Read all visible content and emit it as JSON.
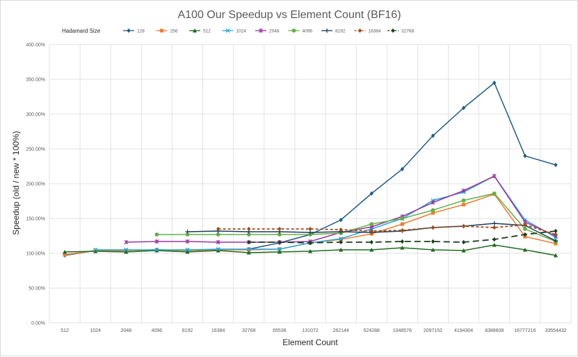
{
  "chart_data": {
    "type": "line",
    "title": "A100 Our Speedup vs Element Count (BF16)",
    "xlabel": "Element Count",
    "ylabel": "Speedup (old / new * 100%)",
    "legend_title": "Hadamard Size",
    "legend_position": "top",
    "grid": true,
    "ylim": [
      0,
      400
    ],
    "yticks": [
      "0.00%",
      "50.00%",
      "100.00%",
      "150.00%",
      "200.00%",
      "250.00%",
      "300.00%",
      "350.00%",
      "400.00%"
    ],
    "categories": [
      "512",
      "1024",
      "2048",
      "4096",
      "8192",
      "16384",
      "32768",
      "65536",
      "131072",
      "262144",
      "524288",
      "1048576",
      "2097152",
      "4194304",
      "8388608",
      "16777216",
      "33554432"
    ],
    "series": [
      {
        "name": "128",
        "color": "#1f5c85",
        "marker": "diamond",
        "dash": "",
        "values": [
          97,
          104,
          104,
          105,
          104,
          105,
          106,
          115,
          127,
          148,
          186,
          221,
          269,
          309,
          345,
          240,
          227
        ]
      },
      {
        "name": "256",
        "color": "#ed7d31",
        "marker": "square",
        "dash": "",
        "values": [
          98,
          104,
          104,
          105,
          104,
          105,
          105,
          106,
          115,
          120,
          128,
          142,
          158,
          170,
          185,
          124,
          114
        ]
      },
      {
        "name": "512",
        "color": "#1e6b1e",
        "marker": "triangle",
        "dash": "",
        "values": [
          102,
          103,
          102,
          104,
          102,
          104,
          101,
          102,
          103,
          105,
          105,
          108,
          105,
          104,
          112,
          105,
          97
        ]
      },
      {
        "name": "1024",
        "color": "#26a6d8",
        "marker": "x",
        "dash": "",
        "values": [
          null,
          105,
          105,
          105,
          105,
          106,
          106,
          106,
          115,
          121,
          135,
          150,
          176,
          188,
          211,
          148,
          123
        ]
      },
      {
        "name": "2048",
        "color": "#9a34a0",
        "marker": "star",
        "dash": "",
        "values": [
          null,
          null,
          116,
          117,
          117,
          116,
          116,
          116,
          117,
          130,
          138,
          153,
          173,
          190,
          211,
          145,
          125
        ]
      },
      {
        "name": "4096",
        "color": "#63b046",
        "marker": "circle",
        "dash": "",
        "values": [
          null,
          null,
          null,
          127,
          127,
          127,
          127,
          127,
          127,
          129,
          142,
          150,
          162,
          176,
          186,
          135,
          117
        ]
      },
      {
        "name": "8192",
        "color": "#1b3a5c",
        "marker": "plus",
        "dash": "",
        "values": [
          null,
          null,
          null,
          null,
          131,
          132,
          131,
          131,
          130,
          131,
          130,
          132,
          137,
          139,
          143,
          140,
          118
        ]
      },
      {
        "name": "16384",
        "color": "#9e4a14",
        "marker": "diamond",
        "dash": "4,3",
        "values": [
          null,
          null,
          null,
          null,
          null,
          135,
          135,
          135,
          135,
          134,
          132,
          133,
          137,
          139,
          137,
          141,
          127
        ]
      },
      {
        "name": "32768",
        "color": "#1a3d1a",
        "marker": "diamond",
        "dash": "9,5",
        "values": [
          null,
          null,
          null,
          null,
          null,
          null,
          116,
          116,
          115,
          116,
          116,
          117,
          117,
          116,
          120,
          127,
          132
        ]
      }
    ]
  }
}
